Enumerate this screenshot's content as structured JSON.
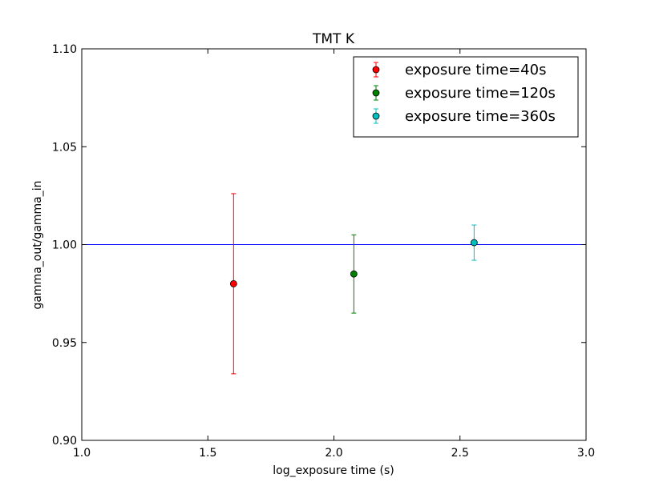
{
  "chart_data": {
    "type": "scatter",
    "title": "TMT K",
    "xlabel": "log_exposure time (s)",
    "ylabel": "gamma_out/gamma_in",
    "xlim": [
      1.0,
      3.0
    ],
    "ylim": [
      0.9,
      1.1
    ],
    "xticks": [
      "1.0",
      "1.5",
      "2.0",
      "2.5",
      "3.0"
    ],
    "yticks": [
      "0.90",
      "0.95",
      "1.00",
      "1.05",
      "1.10"
    ],
    "grid": false,
    "legend_position": "top-right",
    "reference_line": {
      "y": 1.0,
      "color": "#0000ff"
    },
    "series": [
      {
        "name": "exposure time=40s",
        "color": "#ff0000",
        "x": 1.602,
        "y": 0.98,
        "yerr_low": 0.934,
        "yerr_high": 1.026
      },
      {
        "name": "exposure time=120s",
        "color": "#008000",
        "x": 2.079,
        "y": 0.985,
        "yerr_low": 0.965,
        "yerr_high": 1.005
      },
      {
        "name": "exposure time=360s",
        "color": "#00bfbf",
        "x": 2.556,
        "y": 1.001,
        "yerr_low": 0.992,
        "yerr_high": 1.01
      }
    ]
  }
}
